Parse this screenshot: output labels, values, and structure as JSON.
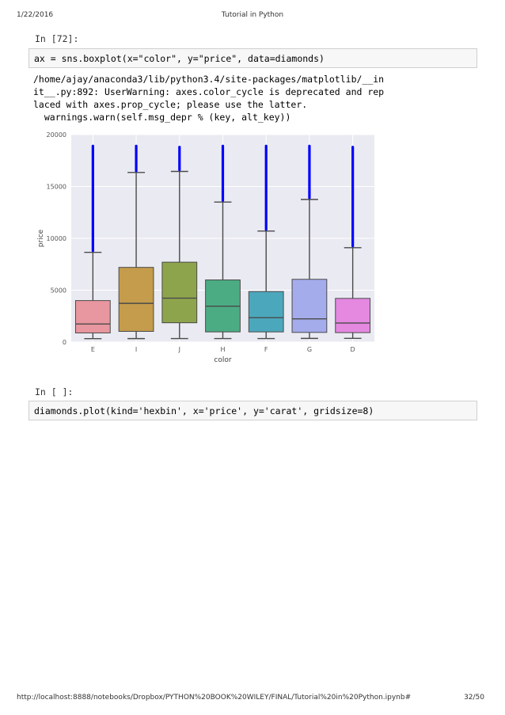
{
  "header": {
    "date": "1/22/2016",
    "title": "Tutorial in Python"
  },
  "cells": {
    "cell1": {
      "prompt": "In [72]:",
      "code": "ax = sns.boxplot(x=\"color\", y=\"price\", data=diamonds)",
      "stderr_lines": [
        "/home/ajay/anaconda3/lib/python3.4/site-packages/matplotlib/__in",
        "it__.py:892: UserWarning: axes.color_cycle is deprecated and rep",
        "laced with axes.prop_cycle; please use the latter.",
        "  warnings.warn(self.msg_depr % (key, alt_key))"
      ]
    },
    "cell2": {
      "prompt": "In [ ]:",
      "code": "diamonds.plot(kind='hexbin', x='price', y='carat', gridsize=8)"
    }
  },
  "chart_data": {
    "type": "box",
    "xlabel": "color",
    "ylabel": "price",
    "ylim": [
      0,
      20000
    ],
    "yticks": [
      0,
      5000,
      10000,
      15000,
      20000
    ],
    "grid": true,
    "outlier_color": "#0000ff",
    "categories": [
      "E",
      "I",
      "J",
      "H",
      "F",
      "G",
      "D"
    ],
    "boxes": [
      {
        "category": "E",
        "color": "#e8969f",
        "whisker_low": 326,
        "q1": 880,
        "median": 1740,
        "q3": 4000,
        "whisker_high": 8650,
        "outliers_high": 18900
      },
      {
        "category": "I",
        "color": "#c49c4c",
        "whisker_low": 334,
        "q1": 1030,
        "median": 3730,
        "q3": 7200,
        "whisker_high": 16350,
        "outliers_high": 18900
      },
      {
        "category": "J",
        "color": "#8ea44c",
        "whisker_low": 335,
        "q1": 1860,
        "median": 4230,
        "q3": 7700,
        "whisker_high": 16450,
        "outliers_high": 18800
      },
      {
        "category": "H",
        "color": "#4bac84",
        "whisker_low": 337,
        "q1": 980,
        "median": 3460,
        "q3": 5990,
        "whisker_high": 13500,
        "outliers_high": 18900
      },
      {
        "category": "F",
        "color": "#4ba8bc",
        "whisker_low": 342,
        "q1": 980,
        "median": 2350,
        "q3": 4870,
        "whisker_high": 10700,
        "outliers_high": 18900
      },
      {
        "category": "G",
        "color": "#a4acec",
        "whisker_low": 354,
        "q1": 930,
        "median": 2240,
        "q3": 6050,
        "whisker_high": 13750,
        "outliers_high": 18900
      },
      {
        "category": "D",
        "color": "#e488e0",
        "whisker_low": 357,
        "q1": 910,
        "median": 1840,
        "q3": 4210,
        "whisker_high": 9100,
        "outliers_high": 18800
      }
    ]
  },
  "footer": {
    "url": "http://localhost:8888/notebooks/Dropbox/PYTHON%20BOOK%20WILEY/FINAL/Tutorial%20in%20Python.ipynb#",
    "page": "32/50"
  }
}
